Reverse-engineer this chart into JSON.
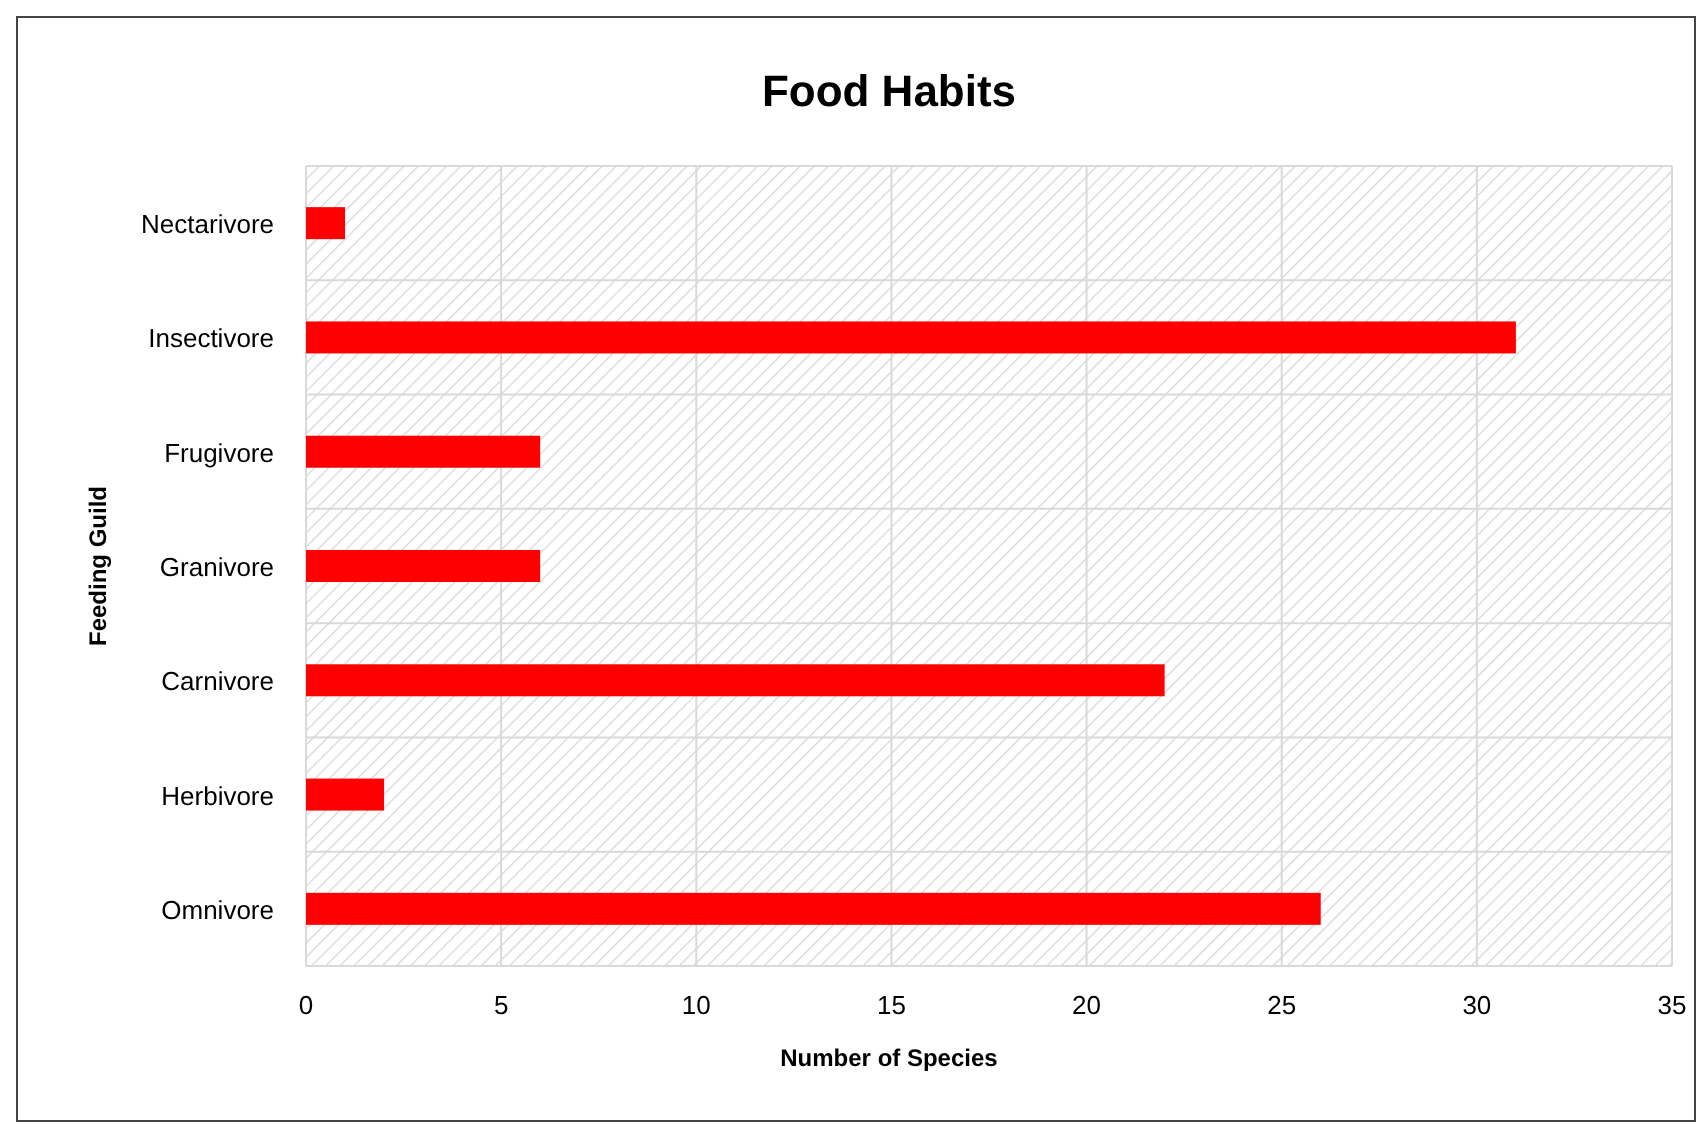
{
  "chart_data": {
    "type": "bar",
    "orientation": "horizontal",
    "title": "Food Habits",
    "xlabel": "Number of Species",
    "ylabel": "Feeding Guild",
    "categories": [
      "Nectarivore",
      "Insectivore",
      "Frugivore",
      "Granivore",
      "Carnivore",
      "Herbivore",
      "Omnivore"
    ],
    "values": [
      1,
      31,
      6,
      6,
      22,
      2,
      26
    ],
    "color": "#ff0000",
    "xlim": [
      0,
      35
    ],
    "xticks": [
      0,
      5,
      10,
      15,
      20,
      25,
      30,
      35
    ],
    "grid": true
  }
}
